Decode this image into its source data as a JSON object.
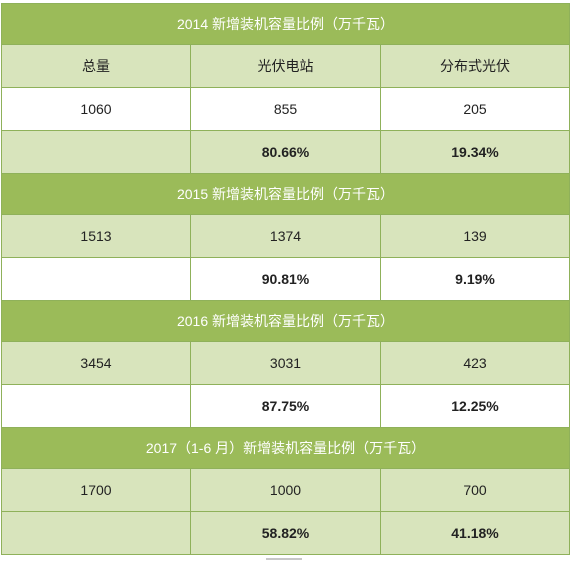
{
  "columns": [
    "总量",
    "光伏电站",
    "分布式光伏"
  ],
  "sections": [
    {
      "title": "2014 新增装机容量比例（万千瓦）",
      "total": "1060",
      "station": "855",
      "distributed": "205",
      "station_pct": "80.66%",
      "distributed_pct": "19.34%"
    },
    {
      "title": "2015 新增装机容量比例（万千瓦）",
      "total": "1513",
      "station": "1374",
      "distributed": "139",
      "station_pct": "90.81%",
      "distributed_pct": "9.19%"
    },
    {
      "title": "2016 新增装机容量比例（万千瓦）",
      "total": "3454",
      "station": "3031",
      "distributed": "423",
      "station_pct": "87.75%",
      "distributed_pct": "12.25%"
    },
    {
      "title": "2017（1-6 月）新增装机容量比例（万千瓦）",
      "total": "1700",
      "station": "1000",
      "distributed": "700",
      "station_pct": "58.82%",
      "distributed_pct": "41.18%"
    }
  ],
  "colors": {
    "header_green": "#9bbb59",
    "light_green": "#d8e4bc",
    "border": "#8fb15a"
  }
}
